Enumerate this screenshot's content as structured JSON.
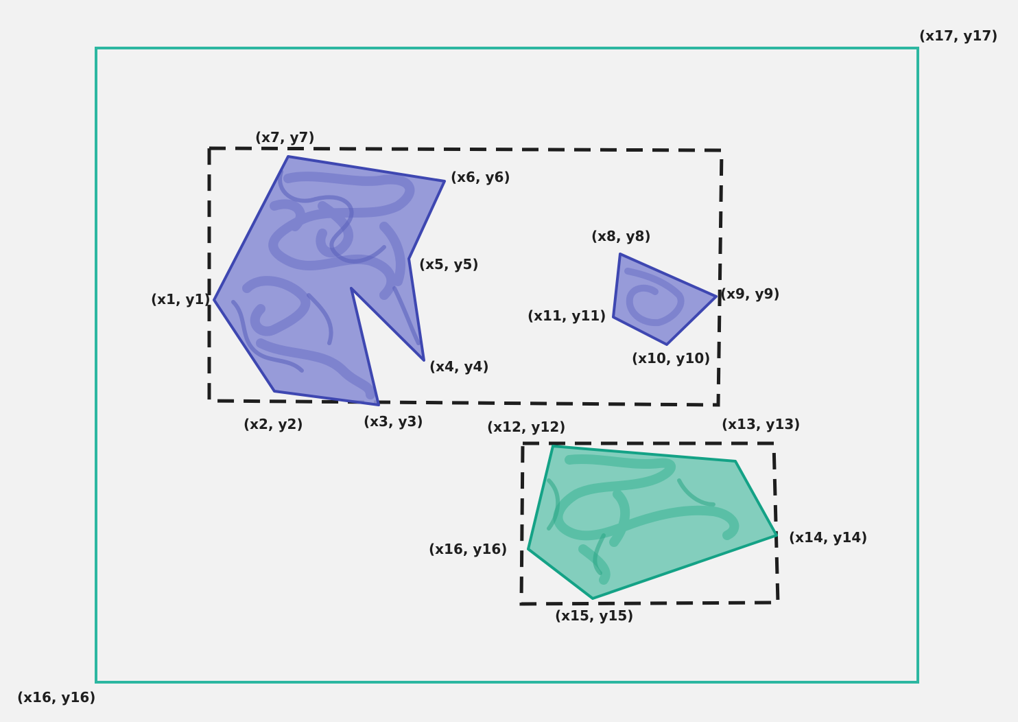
{
  "colors": {
    "background": "#f2f2f2",
    "purple_stroke": "#3e47b1",
    "purple_fill": "#8d91d6",
    "green_stroke": "#14a286",
    "green_fill": "#7ccbb9",
    "outer_frame": "#2db7a1",
    "dashed": "#1e1e1e"
  },
  "labels": {
    "p1": "(x1, y1)",
    "p2": "(x2, y2)",
    "p3": "(x3, y3)",
    "p4": "(x4, y4)",
    "p5": "(x5, y5)",
    "p6": "(x6, y6)",
    "p7": "(x7, y7)",
    "p8": "(x8, y8)",
    "p9": "(x9, y9)",
    "p10": "(x10, y10)",
    "p11": "(x11, y11)",
    "p12": "(x12, y12)",
    "p13": "(x13, y13)",
    "p14": "(x14, y14)",
    "p15": "(x15, y15)",
    "p16": "(x16, y16)",
    "p16_frame": "(x16, y16)",
    "p17": "(x17, y17)"
  }
}
